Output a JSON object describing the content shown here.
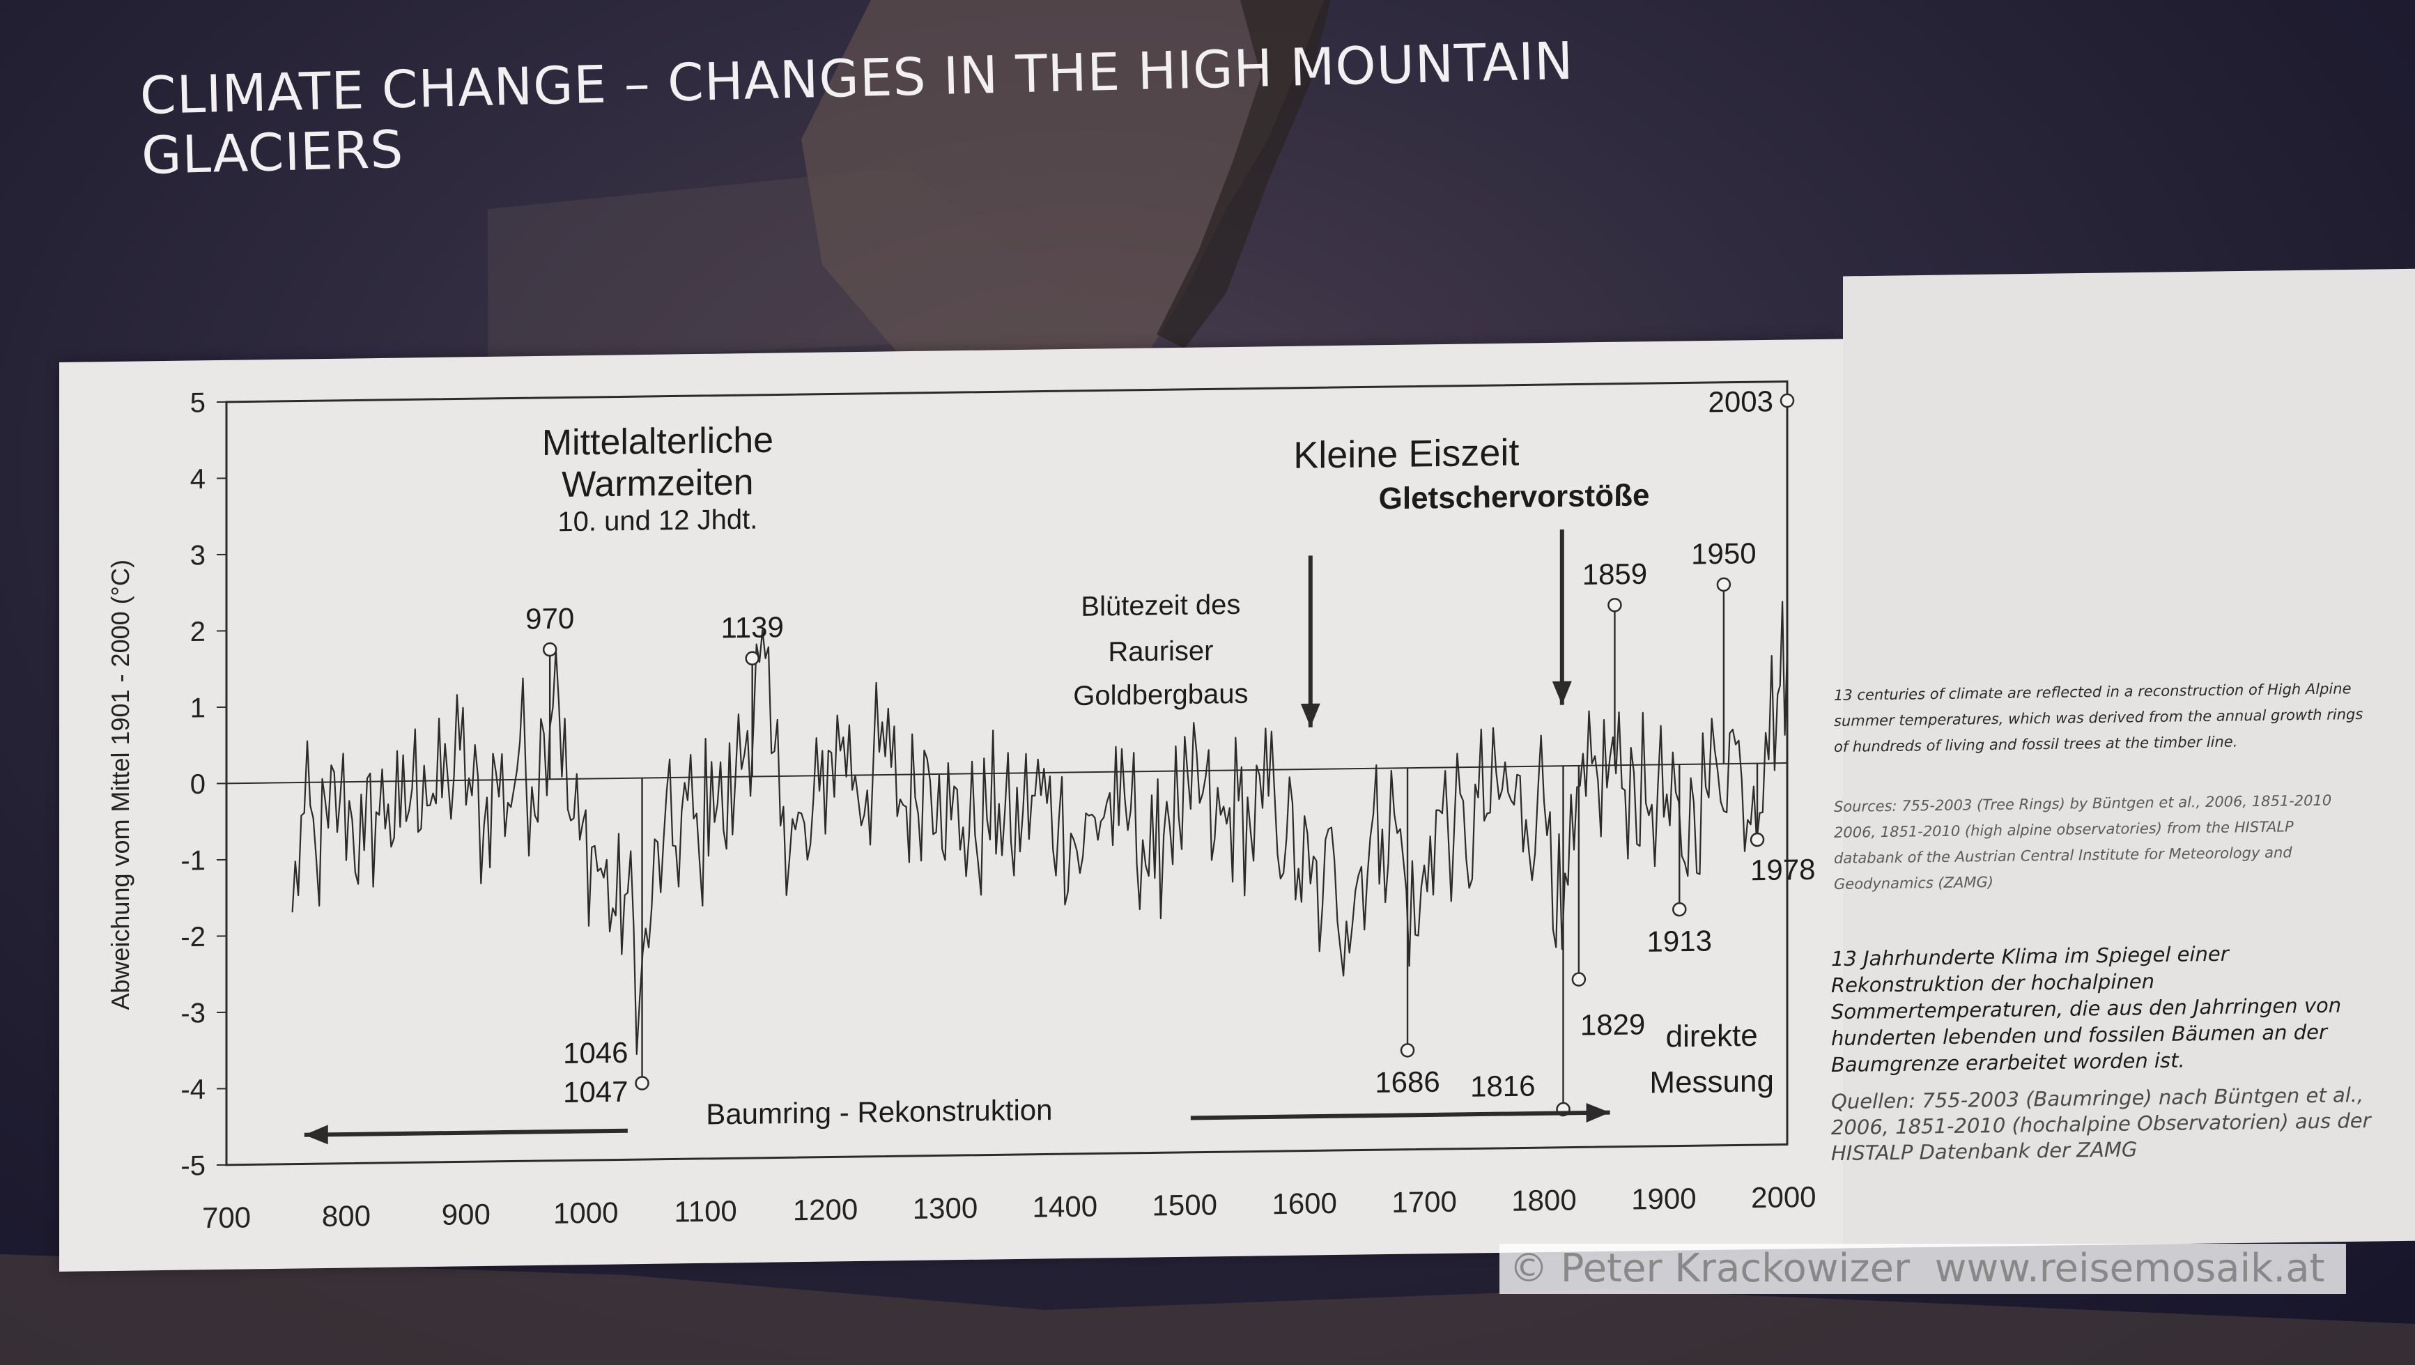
{
  "headline": "CLIMATE CHANGE – CHANGES IN THE HIGH MOUNTAIN GLACIERS",
  "chart_data": {
    "type": "line",
    "title": "",
    "xlabel": "",
    "ylabel": "Abweichung vom Mittel 1901 - 2000 (°C)",
    "xlim": [
      700,
      2003
    ],
    "ylim": [
      -5,
      5
    ],
    "x_ticks": [
      700,
      800,
      900,
      1000,
      1100,
      1200,
      1300,
      1400,
      1500,
      1600,
      1700,
      1800,
      1900,
      2000
    ],
    "y_ticks": [
      5,
      4,
      3,
      2,
      1,
      0,
      -1,
      -2,
      -3,
      -4,
      -5
    ],
    "grid": false,
    "baseline": 0,
    "series": [
      {
        "x": [
          755,
          765,
          775,
          785,
          795,
          805,
          815,
          825,
          835,
          845,
          855,
          865,
          875,
          885,
          895,
          905,
          915,
          925,
          935,
          945,
          955,
          965,
          975,
          985,
          995,
          1005,
          1015,
          1025,
          1035,
          1045,
          1055,
          1065,
          1075,
          1085,
          1095,
          1105,
          1115,
          1125,
          1135,
          1145,
          1155,
          1165,
          1175,
          1185,
          1195,
          1205,
          1215,
          1225,
          1235,
          1245,
          1255,
          1265,
          1275,
          1285,
          1295,
          1305,
          1315,
          1325,
          1335,
          1345,
          1355,
          1365,
          1375,
          1385,
          1395,
          1405,
          1415,
          1425,
          1435,
          1445,
          1455,
          1465,
          1475,
          1485,
          1495,
          1505,
          1515,
          1525,
          1535,
          1545,
          1555,
          1565,
          1575,
          1585,
          1595,
          1605,
          1615,
          1625,
          1635,
          1645,
          1655,
          1665,
          1675,
          1685,
          1695,
          1705,
          1715,
          1725,
          1735,
          1745,
          1755,
          1765,
          1775,
          1785,
          1795,
          1805,
          1815,
          1825,
          1835,
          1845,
          1855,
          1865,
          1875,
          1885,
          1895,
          1905,
          1915,
          1925,
          1935,
          1945,
          1955,
          1965,
          1975,
          1985,
          1995,
          2003
        ],
        "y": [
          -1.7,
          -0.4,
          -1.0,
          -0.6,
          -0.2,
          -0.5,
          -0.9,
          -0.4,
          -0.3,
          -0.6,
          -0.1,
          0.2,
          -0.3,
          0.0,
          0.4,
          -0.2,
          -0.6,
          0.1,
          -0.3,
          0.5,
          -0.1,
          0.6,
          1.7,
          -0.4,
          -0.8,
          -0.9,
          -1.3,
          -1.8,
          -1.5,
          -2.9,
          -1.7,
          -0.8,
          -0.9,
          -0.3,
          -1.1,
          0.2,
          -0.7,
          0.0,
          0.6,
          1.5,
          0.3,
          -0.4,
          -0.7,
          -1.1,
          -0.2,
          0.3,
          0.5,
          0.0,
          -0.2,
          0.3,
          0.1,
          -0.4,
          -0.3,
          0.2,
          0.0,
          -0.6,
          -0.7,
          -0.8,
          -0.6,
          -0.4,
          -0.9,
          -0.5,
          -0.3,
          -0.4,
          -0.6,
          -0.8,
          -1.1,
          -0.6,
          -0.4,
          -0.7,
          -0.5,
          -0.9,
          -1.4,
          -0.4,
          -0.6,
          -0.5,
          -0.3,
          -0.9,
          -0.7,
          -0.4,
          -0.8,
          -0.5,
          -0.3,
          -0.9,
          -1.3,
          -1.5,
          -1.8,
          -1.2,
          -2.0,
          -1.4,
          -0.9,
          -0.8,
          -0.6,
          -1.6,
          -2.2,
          -0.9,
          -0.6,
          -0.8,
          -1.2,
          -0.4,
          -0.6,
          -0.3,
          -0.5,
          -0.7,
          -0.3,
          -0.6,
          -2.4,
          -1.1,
          -0.4,
          -0.2,
          0.1,
          -0.3,
          -0.1,
          -0.5,
          -0.3,
          -0.8,
          -1.2,
          -0.5,
          -0.3,
          -0.1,
          0.4,
          -0.2,
          -0.3,
          0.4,
          0.9,
          1.5
        ]
      }
    ],
    "peak_labels": [
      {
        "year": 970,
        "label": "970",
        "value": 1.7
      },
      {
        "year": 1047,
        "label": "1046\n1047",
        "value": -4.0
      },
      {
        "year": 1139,
        "label": "1139",
        "value": 1.55
      },
      {
        "year": 1686,
        "label": "1686",
        "value": -3.7
      },
      {
        "year": 1816,
        "label": "1816",
        "value": -4.5
      },
      {
        "year": 1829,
        "label": "1829",
        "value": -2.8
      },
      {
        "year": 1859,
        "label": "1859",
        "value": 2.1
      },
      {
        "year": 1913,
        "label": "1913",
        "value": -1.9
      },
      {
        "year": 1950,
        "label": "1950",
        "value": 2.35
      },
      {
        "year": 1978,
        "label": "1978",
        "value": -1.0
      },
      {
        "year": 2003,
        "label": "2003",
        "value": 4.75
      }
    ],
    "annotations": {
      "warm_title_1": "Mittelalterliche",
      "warm_title_2": "Warmzeiten",
      "warm_sub": "10. und 12 Jhdt.",
      "ice_age": "Kleine Eiszeit",
      "glacier_adv": "Gletschervorstöße",
      "mining_1": "Blütezeit des",
      "mining_2": "Rauriser",
      "mining_3": "Goldbergbaus",
      "tree_ring": "Baumring - Rekonstruktion",
      "direct_1": "direkte",
      "direct_2": "Messung"
    }
  },
  "side": {
    "en_text": "13 centuries of climate are reflected in a reconstruction of High Alpine summer temperatures, which was derived from the annual growth rings of hundreds of living and fossil trees at the timber line.",
    "en_sources": "Sources: 755-2003 (Tree Rings) by Büntgen et al., 2006, 1851-2010 2006, 1851-2010 (high alpine observatories) from the HISTALP databank of the Austrian Central Institute for Meteorology and Geodynamics (ZAMG)",
    "de_text": "13 Jahrhunderte Klima im Spiegel einer Rekonstruktion der hochalpinen Sommertemperaturen, die aus den Jahrringen von hunderten lebenden und fossilen Bäumen an der Baumgrenze erarbeitet worden ist.",
    "de_sources": "Quellen: 755-2003 (Baumringe) nach Büntgen et al., 2006, 1851-2010 (hochalpine Observatorien) aus der HISTALP Datenbank der ZAMG"
  },
  "watermark": "© Peter Krackowizer  www.reisemosaik.at",
  "colors": {
    "line": "#2b2b2b",
    "panel": "#e9e8e6",
    "background": "#231f34"
  }
}
